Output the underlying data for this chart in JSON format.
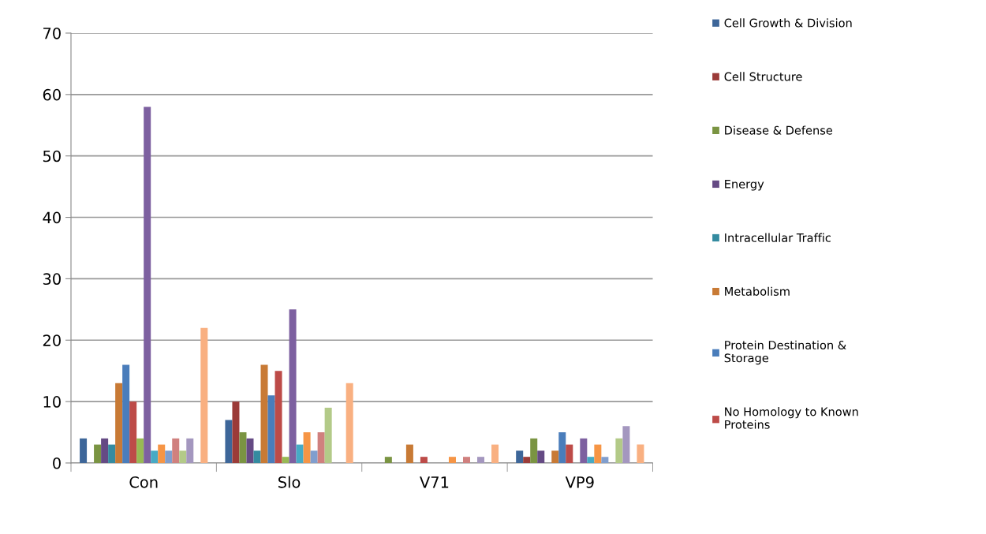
{
  "chart_data": {
    "type": "bar",
    "categories": [
      "Con",
      "Slo",
      "V71",
      "VP9"
    ],
    "ylim": [
      0,
      70
    ],
    "yticks": [
      0,
      10,
      20,
      30,
      40,
      50,
      60,
      70
    ],
    "grid": "y",
    "legend": "right",
    "series": [
      {
        "name": "Cell Growth & Division",
        "color": "#3d6699",
        "values": [
          4,
          7,
          0,
          2
        ]
      },
      {
        "name": "Cell Structure",
        "color": "#9b3b38",
        "values": [
          0,
          10,
          0,
          1
        ]
      },
      {
        "name": "Disease & Defense",
        "color": "#7a9442",
        "values": [
          3,
          5,
          1,
          4
        ]
      },
      {
        "name": "Energy",
        "color": "#654a84",
        "values": [
          4,
          4,
          0,
          2
        ]
      },
      {
        "name": "Intracellular Traffic",
        "color": "#348ba0",
        "values": [
          3,
          2,
          0,
          0
        ]
      },
      {
        "name": "Metabolism",
        "color": "#c87a35",
        "values": [
          13,
          16,
          3,
          2
        ]
      },
      {
        "name": "Protein Destination &\nStorage",
        "color": "#4a7dbb",
        "values": [
          16,
          11,
          0,
          5
        ]
      },
      {
        "name": "No Homology to Known\nProteins",
        "color": "#bd4b48",
        "values": [
          10,
          15,
          1,
          3
        ]
      },
      {
        "color": "#98b954",
        "values": [
          4,
          1,
          0,
          0
        ]
      },
      {
        "color": "#7d60a0",
        "values": [
          58,
          25,
          0,
          4
        ]
      },
      {
        "color": "#46aac5",
        "values": [
          2,
          3,
          0,
          1
        ]
      },
      {
        "color": "#f69545",
        "values": [
          3,
          5,
          1,
          3
        ]
      },
      {
        "color": "#809ece",
        "values": [
          2,
          2,
          0,
          1
        ]
      },
      {
        "color": "#d0807e",
        "values": [
          4,
          5,
          1,
          0
        ]
      },
      {
        "color": "#b3ca88",
        "values": [
          2,
          9,
          0,
          4
        ]
      },
      {
        "color": "#a497bf",
        "values": [
          4,
          0,
          1,
          6
        ]
      },
      {
        "color": "#7ac6da",
        "values": [
          0,
          0,
          0,
          0
        ]
      },
      {
        "color": "#f9b081",
        "values": [
          22,
          13,
          3,
          3
        ]
      }
    ]
  }
}
